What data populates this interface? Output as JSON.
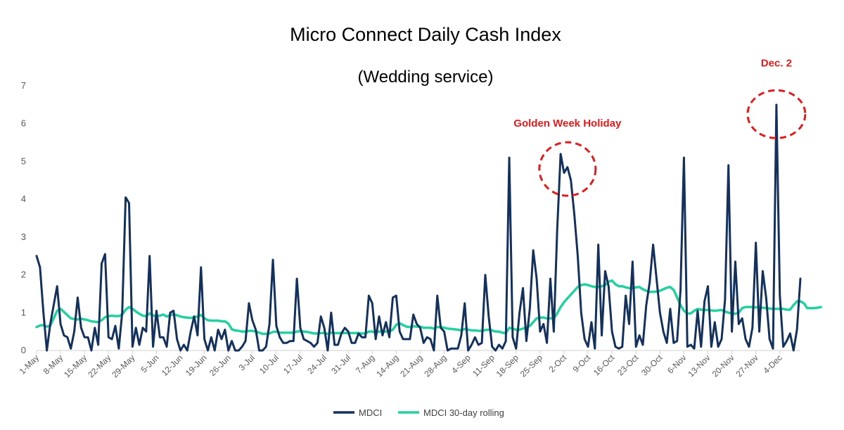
{
  "chart_data": {
    "type": "line",
    "title": "Micro Connect Daily Cash Index",
    "subtitle": "(Wedding service)",
    "xlabel": "",
    "ylabel": "",
    "ylim": [
      0,
      7
    ],
    "y_ticks": [
      0,
      1,
      2,
      3,
      4,
      5,
      6,
      7
    ],
    "grid": false,
    "legend_position": "bottom-center",
    "x_start": "1-May",
    "x_tick_labels": [
      "1-May",
      "8-May",
      "15-May",
      "22-May",
      "29-May",
      "5-Jun",
      "12-Jun",
      "19-Jun",
      "26-Jun",
      "3-Jul",
      "10-Jul",
      "17-Jul",
      "24-Jul",
      "31-Jul",
      "7-Aug",
      "14-Aug",
      "21-Aug",
      "28-Aug",
      "4-Sep",
      "11-Sep",
      "18-Sep",
      "25-Sep",
      "2-Oct",
      "9-Oct",
      "16-Oct",
      "23-Oct",
      "30-Oct",
      "6-Nov",
      "13-Nov",
      "20-Nov",
      "27-Nov",
      "4-Dec"
    ],
    "series": [
      {
        "name": "MDCI",
        "color": "#13315c",
        "values": [
          2.5,
          2.2,
          1.0,
          0.0,
          0.7,
          1.2,
          1.7,
          0.7,
          0.4,
          0.35,
          0.05,
          0.5,
          1.4,
          0.6,
          0.35,
          0.35,
          0.0,
          0.6,
          0.15,
          2.3,
          2.55,
          0.35,
          0.3,
          0.65,
          0.05,
          1.0,
          4.05,
          3.9,
          0.1,
          0.6,
          0.15,
          0.6,
          0.5,
          2.5,
          0.1,
          1.05,
          0.35,
          0.35,
          0.1,
          1.0,
          1.05,
          0.3,
          0.0,
          0.15,
          0.0,
          0.5,
          0.9,
          0.4,
          2.2,
          0.3,
          0.0,
          0.35,
          0.0,
          0.55,
          0.3,
          0.55,
          0.0,
          0.25,
          0.0,
          0.0,
          0.1,
          0.25,
          1.25,
          0.8,
          0.55,
          0.0,
          0.0,
          0.1,
          0.7,
          2.4,
          0.65,
          0.35,
          0.2,
          0.2,
          0.25,
          0.25,
          1.9,
          0.6,
          0.3,
          0.25,
          0.2,
          0.1,
          0.2,
          0.9,
          0.6,
          0.0,
          1.0,
          0.15,
          0.15,
          0.45,
          0.6,
          0.5,
          0.2,
          0.2,
          0.45,
          0.35,
          0.35,
          1.45,
          1.25,
          0.3,
          0.9,
          0.4,
          0.75,
          0.35,
          1.4,
          1.45,
          0.5,
          0.3,
          0.3,
          0.3,
          0.95,
          0.7,
          0.6,
          0.2,
          0.35,
          0.3,
          0.0,
          1.45,
          0.6,
          0.5,
          0.0,
          0.05,
          0.05,
          0.05,
          0.4,
          1.25,
          0.0,
          0.15,
          0.35,
          0.15,
          0.2,
          2.0,
          0.9,
          0.1,
          0.0,
          0.15,
          0.05,
          0.25,
          5.1,
          0.35,
          0.05,
          1.0,
          1.65,
          0.25,
          1.1,
          2.65,
          1.9,
          0.5,
          0.7,
          0.2,
          1.9,
          0.5,
          3.2,
          5.2,
          4.7,
          4.85,
          4.5,
          3.6,
          2.5,
          1.0,
          0.3,
          0.1,
          0.75,
          0.05,
          2.8,
          0.4,
          2.1,
          1.7,
          0.5,
          0.1,
          0.05,
          0.1,
          1.45,
          0.7,
          2.35,
          0.1,
          0.4,
          0.15,
          1.2,
          1.8,
          2.8,
          1.9,
          1.0,
          0.5,
          0.2,
          1.1,
          0.2,
          0.25,
          1.6,
          5.1,
          0.1,
          0.15,
          0.05,
          1.05,
          0.1,
          1.3,
          1.7,
          0.1,
          0.75,
          0.1,
          0.3,
          1.35,
          4.9,
          0.5,
          2.35,
          0.7,
          0.85,
          0.3,
          0.1,
          0.6,
          2.85,
          0.5,
          2.1,
          1.4,
          0.3,
          0.05,
          6.5,
          1.45,
          0.1,
          0.25,
          0.45,
          0.0,
          0.55,
          1.9
        ]
      },
      {
        "name": "MDCI 30-day rolling",
        "color": "#22d0a0",
        "values": [
          0.62,
          0.66,
          0.67,
          0.63,
          0.66,
          0.85,
          1.05,
          1.1,
          1.02,
          0.93,
          0.85,
          0.83,
          0.82,
          0.84,
          0.82,
          0.8,
          0.77,
          0.76,
          0.75,
          0.8,
          0.88,
          0.91,
          0.92,
          0.91,
          0.91,
          0.95,
          1.08,
          1.15,
          1.1,
          1.03,
          0.97,
          0.92,
          0.91,
          0.98,
          0.93,
          0.9,
          0.92,
          0.95,
          0.9,
          0.93,
          0.96,
          0.93,
          0.9,
          0.88,
          0.87,
          0.86,
          0.88,
          0.9,
          0.94,
          0.85,
          0.8,
          0.79,
          0.79,
          0.79,
          0.77,
          0.77,
          0.71,
          0.56,
          0.53,
          0.52,
          0.5,
          0.5,
          0.52,
          0.52,
          0.5,
          0.47,
          0.44,
          0.44,
          0.45,
          0.49,
          0.5,
          0.47,
          0.47,
          0.47,
          0.47,
          0.47,
          0.5,
          0.51,
          0.5,
          0.49,
          0.47,
          0.45,
          0.45,
          0.46,
          0.46,
          0.44,
          0.47,
          0.46,
          0.46,
          0.46,
          0.46,
          0.46,
          0.46,
          0.46,
          0.46,
          0.45,
          0.45,
          0.5,
          0.5,
          0.47,
          0.5,
          0.5,
          0.5,
          0.5,
          0.55,
          0.68,
          0.72,
          0.67,
          0.63,
          0.62,
          0.64,
          0.63,
          0.63,
          0.6,
          0.6,
          0.6,
          0.58,
          0.62,
          0.62,
          0.6,
          0.58,
          0.57,
          0.56,
          0.55,
          0.53,
          0.57,
          0.55,
          0.53,
          0.53,
          0.52,
          0.52,
          0.54,
          0.55,
          0.53,
          0.5,
          0.5,
          0.47,
          0.46,
          0.6,
          0.58,
          0.55,
          0.55,
          0.58,
          0.6,
          0.65,
          0.75,
          0.85,
          0.87,
          0.87,
          0.85,
          0.85,
          0.85,
          0.98,
          1.15,
          1.28,
          1.38,
          1.48,
          1.58,
          1.68,
          1.73,
          1.75,
          1.73,
          1.7,
          1.68,
          1.68,
          1.7,
          1.73,
          1.82,
          1.85,
          1.75,
          1.7,
          1.7,
          1.67,
          1.65,
          1.65,
          1.67,
          1.68,
          1.62,
          1.58,
          1.55,
          1.55,
          1.56,
          1.58,
          1.62,
          1.66,
          1.68,
          1.6,
          1.4,
          1.2,
          1.05,
          0.98,
          0.98,
          1.05,
          1.1,
          1.08,
          1.07,
          1.07,
          1.06,
          1.05,
          1.06,
          1.07,
          1.03,
          1.0,
          0.98,
          0.97,
          1.0,
          1.12,
          1.15,
          1.15,
          1.15,
          1.14,
          1.15,
          1.13,
          1.12,
          1.11,
          1.1,
          1.1,
          1.1,
          1.1,
          1.08,
          1.08,
          1.2,
          1.3,
          1.3,
          1.25,
          1.12,
          1.12,
          1.12,
          1.13,
          1.15
        ]
      }
    ],
    "annotations": [
      {
        "text": "Golden Week Holiday",
        "x_index": 155,
        "y": 4.8
      },
      {
        "text": "Dec. 2",
        "x_index": 216,
        "y": 6.25
      }
    ],
    "annotation_color": "#e31b1b"
  }
}
